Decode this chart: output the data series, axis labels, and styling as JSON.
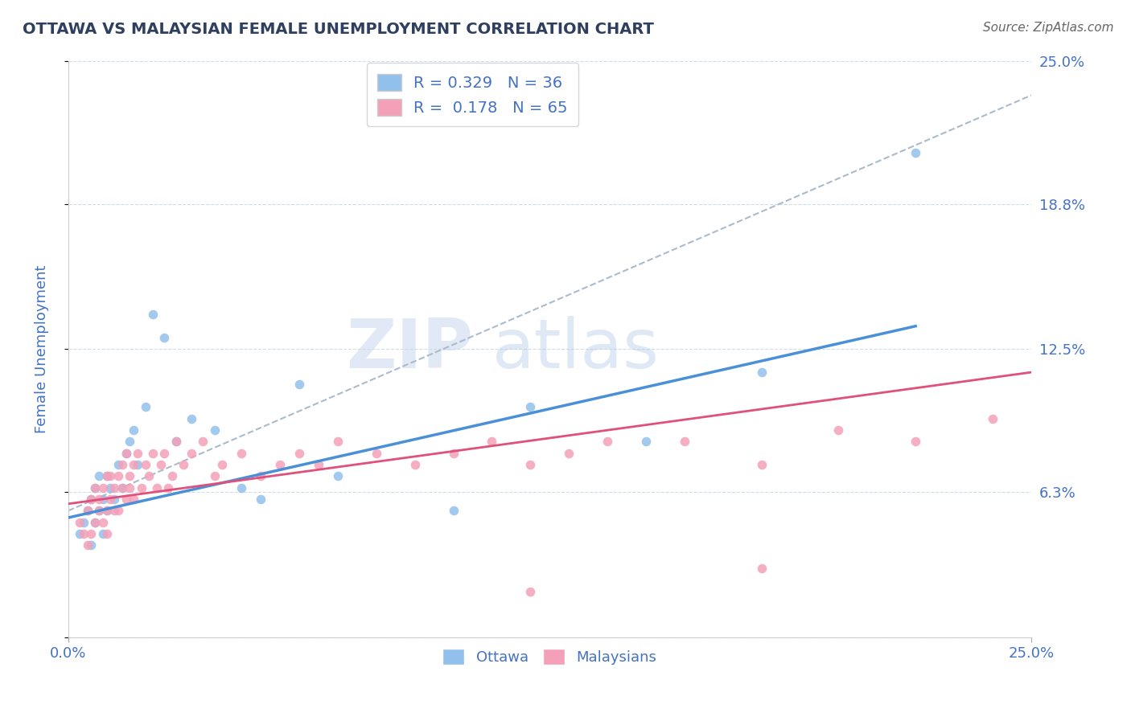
{
  "title": "OTTAWA VS MALAYSIAN FEMALE UNEMPLOYMENT CORRELATION CHART",
  "source": "Source: ZipAtlas.com",
  "ylabel": "Female Unemployment",
  "xlim": [
    0.0,
    0.25
  ],
  "ylim": [
    0.0,
    0.25
  ],
  "ytick_values": [
    0.0,
    0.063,
    0.125,
    0.188,
    0.25
  ],
  "ytick_right_labels": [
    "",
    "6.3%",
    "12.5%",
    "18.8%",
    "25.0%"
  ],
  "xtick_values": [
    0.0,
    0.25
  ],
  "xtick_labels": [
    "0.0%",
    "25.0%"
  ],
  "legend_label1": "Ottawa",
  "legend_label2": "Malaysians",
  "R1": "0.329",
  "N1": "36",
  "R2": "0.178",
  "N2": "65",
  "color_ottawa": "#92C0EC",
  "color_malaysia": "#F4A0B8",
  "color_line_ottawa": "#4A90D9",
  "color_line_malaysia": "#E0507A",
  "title_color": "#2F3F5F",
  "tick_label_color": "#4472C4",
  "background_color": "#FFFFFF",
  "grid_color": "#D0DCE8",
  "ottawa_x": [
    0.003,
    0.004,
    0.005,
    0.006,
    0.006,
    0.007,
    0.007,
    0.008,
    0.008,
    0.009,
    0.009,
    0.01,
    0.01,
    0.011,
    0.012,
    0.013,
    0.014,
    0.015,
    0.016,
    0.017,
    0.018,
    0.02,
    0.022,
    0.025,
    0.028,
    0.032,
    0.038,
    0.045,
    0.05,
    0.06,
    0.07,
    0.1,
    0.12,
    0.15,
    0.18,
    0.22
  ],
  "ottawa_y": [
    0.045,
    0.05,
    0.055,
    0.06,
    0.04,
    0.05,
    0.065,
    0.055,
    0.07,
    0.045,
    0.06,
    0.055,
    0.07,
    0.065,
    0.06,
    0.075,
    0.065,
    0.08,
    0.085,
    0.09,
    0.075,
    0.1,
    0.14,
    0.13,
    0.085,
    0.095,
    0.09,
    0.065,
    0.06,
    0.11,
    0.07,
    0.055,
    0.1,
    0.085,
    0.115,
    0.21
  ],
  "malaysia_x": [
    0.003,
    0.004,
    0.005,
    0.005,
    0.006,
    0.006,
    0.007,
    0.007,
    0.008,
    0.008,
    0.009,
    0.009,
    0.01,
    0.01,
    0.01,
    0.011,
    0.011,
    0.012,
    0.012,
    0.013,
    0.013,
    0.014,
    0.014,
    0.015,
    0.015,
    0.016,
    0.016,
    0.017,
    0.017,
    0.018,
    0.019,
    0.02,
    0.021,
    0.022,
    0.023,
    0.024,
    0.025,
    0.026,
    0.027,
    0.028,
    0.03,
    0.032,
    0.035,
    0.038,
    0.04,
    0.045,
    0.05,
    0.055,
    0.06,
    0.065,
    0.07,
    0.08,
    0.09,
    0.1,
    0.11,
    0.12,
    0.13,
    0.14,
    0.16,
    0.18,
    0.2,
    0.22,
    0.24,
    0.12,
    0.18
  ],
  "malaysia_y": [
    0.05,
    0.045,
    0.055,
    0.04,
    0.06,
    0.045,
    0.05,
    0.065,
    0.055,
    0.06,
    0.05,
    0.065,
    0.055,
    0.07,
    0.045,
    0.06,
    0.07,
    0.065,
    0.055,
    0.07,
    0.055,
    0.065,
    0.075,
    0.08,
    0.06,
    0.07,
    0.065,
    0.075,
    0.06,
    0.08,
    0.065,
    0.075,
    0.07,
    0.08,
    0.065,
    0.075,
    0.08,
    0.065,
    0.07,
    0.085,
    0.075,
    0.08,
    0.085,
    0.07,
    0.075,
    0.08,
    0.07,
    0.075,
    0.08,
    0.075,
    0.085,
    0.08,
    0.075,
    0.08,
    0.085,
    0.075,
    0.08,
    0.085,
    0.085,
    0.075,
    0.09,
    0.085,
    0.095,
    0.02,
    0.03
  ],
  "line_ottawa_x0": 0.0,
  "line_ottawa_y0": 0.052,
  "line_ottawa_x1": 0.22,
  "line_ottawa_y1": 0.135,
  "line_malaysia_x0": 0.0,
  "line_malaysia_y0": 0.058,
  "line_malaysia_x1": 0.25,
  "line_malaysia_y1": 0.115,
  "line_dashed_x0": 0.0,
  "line_dashed_y0": 0.055,
  "line_dashed_x1": 0.25,
  "line_dashed_y1": 0.235
}
